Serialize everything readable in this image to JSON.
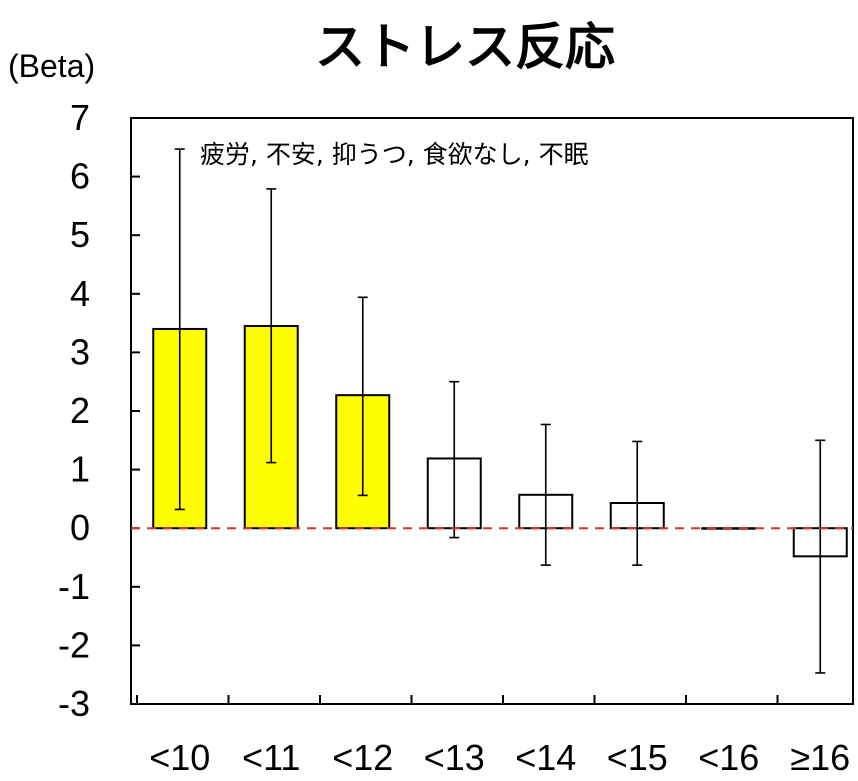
{
  "chart_data": {
    "type": "bar",
    "title": "ストレス反応",
    "ylabel": "(Beta)",
    "annotation": "疲労, 不安, 抑うつ, 食欲なし, 不眠",
    "categories": [
      "<10",
      "<11",
      "<12",
      "<13",
      "<14",
      "<15",
      "<16",
      "≥16"
    ],
    "values": [
      3.4,
      3.45,
      2.27,
      1.19,
      0.57,
      0.43,
      0,
      -0.48
    ],
    "error_low": [
      0.32,
      1.12,
      0.56,
      -0.16,
      -0.63,
      -0.63,
      0,
      -2.47
    ],
    "error_high": [
      6.47,
      5.79,
      3.94,
      2.5,
      1.77,
      1.48,
      0,
      1.5
    ],
    "bar_colors": [
      "#ffff00",
      "#ffff00",
      "#ffff00",
      "#ffffff",
      "#ffffff",
      "#ffffff",
      "#000000",
      "#ffffff"
    ],
    "yticks": [
      "7",
      "6",
      "5",
      "4",
      "3",
      "2",
      "1",
      "0",
      "-1",
      "-2",
      "-3"
    ],
    "ylim": [
      -3,
      7
    ],
    "reference_line": {
      "value": 0,
      "color": "#e03030",
      "style": "dashed"
    },
    "grid": false
  }
}
